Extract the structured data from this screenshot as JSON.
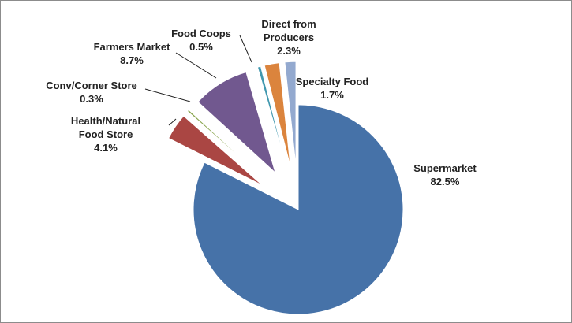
{
  "chart_data": {
    "type": "pie",
    "exploded": true,
    "slices": [
      {
        "name": "Supermarket",
        "label": "Supermarket",
        "pct_label": "82.5%",
        "value": 82.5,
        "color": "#4672a8"
      },
      {
        "name": "Health/Natural Food Store",
        "label": "Health/Natural\nFood Store",
        "pct_label": "4.1%",
        "value": 4.1,
        "color": "#aa4643"
      },
      {
        "name": "Conv/Corner Store",
        "label": "Conv/Corner Store",
        "pct_label": "0.3%",
        "value": 0.3,
        "color": "#89a54e"
      },
      {
        "name": "Farmers Market",
        "label": "Farmers Market",
        "pct_label": "8.7%",
        "value": 8.7,
        "color": "#71588f"
      },
      {
        "name": "Food Coops",
        "label": "Food Coops",
        "pct_label": "0.5%",
        "value": 0.5,
        "color": "#4198af"
      },
      {
        "name": "Direct from Producers",
        "label": "Direct from\nProducers",
        "pct_label": "2.3%",
        "value": 2.3,
        "color": "#db843d"
      },
      {
        "name": "Specialty Food",
        "label": "Specialty Food",
        "pct_label": "1.7%",
        "value": 1.7,
        "color": "#93a9cf"
      }
    ]
  }
}
